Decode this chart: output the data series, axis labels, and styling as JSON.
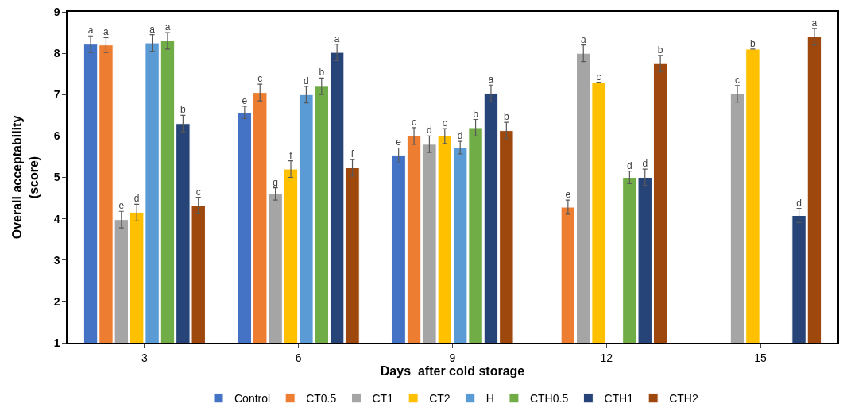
{
  "chart_data": {
    "type": "bar",
    "xlabel": "Days  after cold storage",
    "ylabel": "Overall acceptability\n(score)",
    "categories": [
      "3",
      "6",
      "9",
      "12",
      "15"
    ],
    "ylim": [
      1,
      9
    ],
    "yticks": [
      1,
      2,
      3,
      4,
      5,
      6,
      7,
      8,
      9
    ],
    "legend": "bottom",
    "series": [
      {
        "name": "Control",
        "color": "#4472c4",
        "values": [
          8.22,
          6.57,
          5.53,
          null,
          null
        ],
        "errors": [
          0.2,
          0.15,
          0.18,
          null,
          null
        ],
        "value_labels": [
          "a",
          "e",
          "e",
          null,
          null
        ]
      },
      {
        "name": "CT0.5",
        "color": "#ed7d31",
        "values": [
          8.2,
          7.05,
          6.0,
          4.28,
          null
        ],
        "errors": [
          0.18,
          0.2,
          0.2,
          0.17,
          null
        ],
        "value_labels": [
          "a",
          "c",
          "c",
          "e",
          null
        ]
      },
      {
        "name": "CT1",
        "color": "#a5a5a5",
        "values": [
          3.98,
          4.6,
          5.8,
          8.0,
          7.02
        ],
        "errors": [
          0.2,
          0.15,
          0.2,
          0.2,
          0.2
        ],
        "value_labels": [
          "e",
          "g",
          "d",
          "a",
          "c"
        ]
      },
      {
        "name": "CT2",
        "color": "#ffc000",
        "values": [
          4.15,
          5.2,
          6.0,
          7.3,
          8.1
        ],
        "errors": [
          0.2,
          0.2,
          0.18,
          0.0,
          0.0
        ],
        "value_labels": [
          "d",
          "f",
          "c",
          "c",
          "b"
        ]
      },
      {
        "name": "H",
        "color": "#5b9bd5",
        "values": [
          8.25,
          7.0,
          5.72,
          null,
          null
        ],
        "errors": [
          0.2,
          0.2,
          0.15,
          null,
          null
        ],
        "value_labels": [
          "a",
          "d",
          "d",
          null,
          null
        ]
      },
      {
        "name": "CTH0.5",
        "color": "#70ad47",
        "values": [
          8.3,
          7.2,
          6.2,
          5.0,
          null
        ],
        "errors": [
          0.2,
          0.2,
          0.2,
          0.15,
          null
        ],
        "value_labels": [
          "a",
          "b",
          "b",
          "d",
          null
        ]
      },
      {
        "name": "CTH1",
        "color": "#264478",
        "values": [
          6.3,
          8.02,
          7.03,
          5.0,
          4.08
        ],
        "errors": [
          0.2,
          0.2,
          0.2,
          0.2,
          0.17
        ],
        "value_labels": [
          "b",
          "a",
          "a",
          "d",
          "d"
        ]
      },
      {
        "name": "CTH2",
        "color": "#9e480e",
        "values": [
          4.32,
          5.23,
          6.13,
          7.75,
          8.4
        ],
        "errors": [
          0.2,
          0.2,
          0.2,
          0.2,
          0.2
        ],
        "value_labels": [
          "c",
          "f",
          "b",
          "b",
          "a"
        ]
      }
    ]
  }
}
